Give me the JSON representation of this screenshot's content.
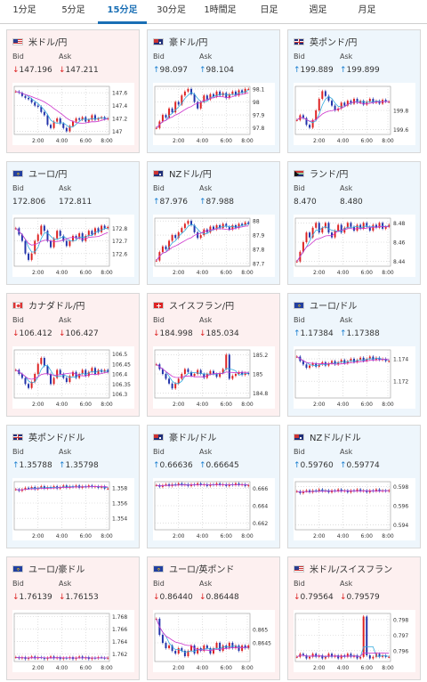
{
  "tabs": [
    {
      "label": "1分足",
      "active": false
    },
    {
      "label": "5分足",
      "active": false
    },
    {
      "label": "15分足",
      "active": true
    },
    {
      "label": "30分足",
      "active": false
    },
    {
      "label": "1時間足",
      "active": false
    },
    {
      "label": "日足",
      "active": false
    },
    {
      "label": "週足",
      "active": false
    },
    {
      "label": "月足",
      "active": false
    }
  ],
  "labels": {
    "bid": "Bid",
    "ask": "Ask"
  },
  "arrows": {
    "up": "↑",
    "down": "↓"
  },
  "colors": {
    "down_bg": "#fdf0f0",
    "up_bg": "#eef6fc",
    "down_arrow": "#dd2222",
    "up_arrow": "#1a7ed0",
    "candle_up": "#dd2222",
    "candle_down": "#2233aa",
    "ma_short": "#33aadd",
    "ma_long": "#cc33cc",
    "active_tab": "#1a6fb5"
  },
  "x_ticks": [
    "2:00",
    "4:00",
    "6:00",
    "8:00"
  ],
  "pairs": [
    {
      "name": "米ドル/円",
      "flag": "us",
      "dir": "down",
      "bid": "147.196",
      "ask": "147.211",
      "y_ticks": [
        "147.6",
        "147.4",
        "147.2",
        "147"
      ],
      "chart_data": {
        "type": "candlestick",
        "x_ticks": [
          "2:00",
          "4:00",
          "6:00",
          "8:00"
        ],
        "y_ticks": [
          147.6,
          147.4,
          147.2,
          147.0
        ],
        "y_range": [
          146.95,
          147.7
        ],
        "closes": [
          147.62,
          147.6,
          147.55,
          147.52,
          147.5,
          147.45,
          147.4,
          147.38,
          147.3,
          147.25,
          147.1,
          147.05,
          147.15,
          147.2,
          147.12,
          147.05,
          147.0,
          147.08,
          147.15,
          147.2,
          147.18,
          147.22,
          147.15,
          147.18,
          147.25,
          147.18,
          147.2,
          147.22,
          147.19,
          147.2
        ]
      }
    },
    {
      "name": "豪ドル/円",
      "flag": "au",
      "dir": "up",
      "bid": "98.097",
      "ask": "98.104",
      "y_ticks": [
        "98.1",
        "98",
        "97.9",
        "97.8"
      ],
      "chart_data": {
        "type": "candlestick",
        "x_ticks": [
          "2:00",
          "4:00",
          "6:00",
          "8:00"
        ],
        "y_ticks": [
          98.1,
          98.0,
          97.9,
          97.8
        ],
        "y_range": [
          97.75,
          98.12
        ],
        "closes": [
          97.8,
          97.85,
          97.9,
          97.88,
          97.95,
          97.92,
          98.0,
          97.98,
          98.05,
          98.08,
          98.1,
          98.06,
          98.0,
          97.95,
          98.0,
          98.05,
          98.02,
          98.06,
          98.04,
          98.08,
          98.05,
          98.07,
          98.03,
          98.06,
          98.08,
          98.05,
          98.09,
          98.07,
          98.1,
          98.1
        ]
      }
    },
    {
      "name": "英ポンド/円",
      "flag": "gb",
      "dir": "up",
      "bid": "199.889",
      "ask": "199.899",
      "y_ticks": [
        "199.8",
        "199.6"
      ],
      "chart_data": {
        "type": "candlestick",
        "x_ticks": [
          "2:00",
          "4:00",
          "6:00",
          "8:00"
        ],
        "y_ticks": [
          199.8,
          199.6
        ],
        "y_range": [
          199.55,
          200.05
        ],
        "closes": [
          199.7,
          199.75,
          199.72,
          199.65,
          199.62,
          199.7,
          199.8,
          199.92,
          200.0,
          199.95,
          199.9,
          199.85,
          199.8,
          199.82,
          199.88,
          199.85,
          199.9,
          199.87,
          199.92,
          199.88,
          199.9,
          199.86,
          199.89,
          199.92,
          199.88,
          199.9,
          199.87,
          199.91,
          199.89,
          199.89
        ]
      }
    },
    {
      "name": "ユーロ/円",
      "flag": "eu",
      "dir": "none",
      "bid": "172.806",
      "ask": "172.811",
      "y_ticks": [
        "172.8",
        "172.7",
        "172.6"
      ],
      "chart_data": {
        "type": "candlestick",
        "x_ticks": [
          "2:00",
          "4:00",
          "6:00",
          "8:00"
        ],
        "y_ticks": [
          172.8,
          172.7,
          172.6
        ],
        "y_range": [
          172.5,
          172.88
        ],
        "closes": [
          172.8,
          172.75,
          172.7,
          172.6,
          172.55,
          172.6,
          172.7,
          172.75,
          172.82,
          172.78,
          172.7,
          172.65,
          172.72,
          172.78,
          172.74,
          172.7,
          172.66,
          172.7,
          172.74,
          172.72,
          172.76,
          172.7,
          172.74,
          172.78,
          172.75,
          172.8,
          172.77,
          172.82,
          172.8,
          172.81
        ]
      }
    },
    {
      "name": "NZドル/円",
      "flag": "nz",
      "dir": "up",
      "bid": "87.976",
      "ask": "87.988",
      "y_ticks": [
        "88",
        "87.9",
        "87.8",
        "87.7"
      ],
      "chart_data": {
        "type": "candlestick",
        "x_ticks": [
          "2:00",
          "4:00",
          "6:00",
          "8:00"
        ],
        "y_ticks": [
          88.0,
          87.9,
          87.8,
          87.7
        ],
        "y_range": [
          87.68,
          88.02
        ],
        "closes": [
          87.72,
          87.78,
          87.82,
          87.8,
          87.86,
          87.9,
          87.88,
          87.92,
          87.95,
          87.98,
          88.0,
          87.97,
          87.92,
          87.88,
          87.9,
          87.94,
          87.92,
          87.96,
          87.94,
          87.97,
          87.95,
          87.98,
          87.96,
          87.94,
          87.97,
          87.95,
          87.98,
          87.97,
          87.99,
          87.98
        ]
      }
    },
    {
      "name": "ランド/円",
      "flag": "za",
      "dir": "none",
      "bid": "8.470",
      "ask": "8.480",
      "y_ticks": [
        "8.48",
        "8.46",
        "8.44"
      ],
      "chart_data": {
        "type": "candlestick",
        "x_ticks": [
          "2:00",
          "4:00",
          "6:00",
          "8:00"
        ],
        "y_ticks": [
          8.48,
          8.46,
          8.44
        ],
        "y_range": [
          8.435,
          8.485
        ],
        "closes": [
          8.44,
          8.45,
          8.46,
          8.47,
          8.465,
          8.475,
          8.48,
          8.47,
          8.475,
          8.48,
          8.47,
          8.465,
          8.472,
          8.478,
          8.47,
          8.475,
          8.48,
          8.476,
          8.472,
          8.478,
          8.474,
          8.48,
          8.476,
          8.472,
          8.478,
          8.475,
          8.48,
          8.474,
          8.476,
          8.478
        ]
      }
    },
    {
      "name": "カナダドル/円",
      "flag": "ca",
      "dir": "down",
      "bid": "106.412",
      "ask": "106.427",
      "y_ticks": [
        "106.5",
        "106.45",
        "106.4",
        "106.35",
        "106.3"
      ],
      "chart_data": {
        "type": "candlestick",
        "x_ticks": [
          "2:00",
          "4:00",
          "6:00",
          "8:00"
        ],
        "y_ticks": [
          106.5,
          106.45,
          106.4,
          106.35,
          106.3
        ],
        "y_range": [
          106.28,
          106.52
        ],
        "closes": [
          106.42,
          106.4,
          106.38,
          106.35,
          106.33,
          106.36,
          106.4,
          106.45,
          106.48,
          106.44,
          106.4,
          106.35,
          106.38,
          106.42,
          106.4,
          106.38,
          106.36,
          106.39,
          106.41,
          106.38,
          106.4,
          106.42,
          106.39,
          106.41,
          106.43,
          106.4,
          106.42,
          106.41,
          106.42,
          106.41
        ]
      }
    },
    {
      "name": "スイスフラン/円",
      "flag": "ch",
      "dir": "down",
      "bid": "184.998",
      "ask": "185.034",
      "y_ticks": [
        "185.2",
        "185",
        "184.8"
      ],
      "chart_data": {
        "type": "candlestick",
        "x_ticks": [
          "2:00",
          "4:00",
          "6:00",
          "8:00"
        ],
        "y_ticks": [
          185.2,
          185.0,
          184.8
        ],
        "y_range": [
          184.75,
          185.25
        ],
        "closes": [
          185.1,
          185.05,
          185.0,
          184.95,
          184.9,
          184.85,
          184.9,
          184.95,
          185.0,
          185.05,
          185.02,
          184.98,
          185.0,
          185.04,
          185.0,
          184.96,
          185.0,
          185.03,
          185.0,
          184.97,
          185.01,
          185.05,
          185.2,
          184.95,
          184.98,
          185.0,
          185.02,
          184.99,
          185.01,
          185.0
        ]
      }
    },
    {
      "name": "ユーロ/ドル",
      "flag": "eu",
      "dir": "up",
      "bid": "1.17384",
      "ask": "1.17388",
      "y_ticks": [
        "1.174",
        "1.172"
      ],
      "chart_data": {
        "type": "candlestick",
        "x_ticks": [
          "2:00",
          "4:00",
          "6:00",
          "8:00"
        ],
        "y_ticks": [
          1.174,
          1.172
        ],
        "y_range": [
          1.1705,
          1.1748
        ],
        "closes": [
          1.1742,
          1.1738,
          1.1735,
          1.1732,
          1.1734,
          1.1736,
          1.1733,
          1.1735,
          1.1737,
          1.1734,
          1.1736,
          1.1738,
          1.1735,
          1.1737,
          1.1739,
          1.1736,
          1.1738,
          1.174,
          1.1737,
          1.1739,
          1.1741,
          1.1738,
          1.174,
          1.1742,
          1.1739,
          1.1741,
          1.1739,
          1.174,
          1.1738,
          1.1738
        ]
      }
    },
    {
      "name": "英ポンド/ドル",
      "flag": "gb",
      "dir": "up",
      "bid": "1.35788",
      "ask": "1.35798",
      "y_ticks": [
        "1.358",
        "1.356",
        "1.354"
      ],
      "chart_data": {
        "type": "candlestick",
        "x_ticks": [
          "2:00",
          "4:00",
          "6:00",
          "8:00"
        ],
        "y_ticks": [
          1.358,
          1.356,
          1.354
        ],
        "y_range": [
          1.3525,
          1.3588
        ],
        "closes": [
          1.3578,
          1.3576,
          1.3578,
          1.358,
          1.3579,
          1.3581,
          1.3578,
          1.358,
          1.3582,
          1.3579,
          1.3581,
          1.358,
          1.3582,
          1.3579,
          1.3581,
          1.3583,
          1.358,
          1.3582,
          1.3581,
          1.3583,
          1.358,
          1.3582,
          1.3581,
          1.3583,
          1.3581,
          1.3582,
          1.358,
          1.3582,
          1.3579,
          1.3579
        ]
      }
    },
    {
      "name": "豪ドル/ドル",
      "flag": "au",
      "dir": "up",
      "bid": "0.66636",
      "ask": "0.66645",
      "y_ticks": [
        "0.666",
        "0.664",
        "0.662"
      ],
      "chart_data": {
        "type": "candlestick",
        "x_ticks": [
          "2:00",
          "4:00",
          "6:00",
          "8:00"
        ],
        "y_ticks": [
          0.666,
          0.664,
          0.662
        ],
        "y_range": [
          0.6612,
          0.6668
        ],
        "closes": [
          0.6664,
          0.6662,
          0.6664,
          0.6665,
          0.6663,
          0.6665,
          0.6664,
          0.6666,
          0.6664,
          0.6665,
          0.6663,
          0.6665,
          0.6664,
          0.6666,
          0.6664,
          0.6665,
          0.6663,
          0.6665,
          0.6664,
          0.6666,
          0.6664,
          0.6665,
          0.6663,
          0.6665,
          0.6664,
          0.6666,
          0.6664,
          0.6665,
          0.6663,
          0.6664
        ]
      }
    },
    {
      "name": "NZドル/ドル",
      "flag": "nz",
      "dir": "up",
      "bid": "0.59760",
      "ask": "0.59774",
      "y_ticks": [
        "0.598",
        "0.596",
        "0.594"
      ],
      "chart_data": {
        "type": "candlestick",
        "x_ticks": [
          "2:00",
          "4:00",
          "6:00",
          "8:00"
        ],
        "y_ticks": [
          0.598,
          0.596,
          0.594
        ],
        "y_range": [
          0.5935,
          0.5985
        ],
        "closes": [
          0.5975,
          0.5973,
          0.5975,
          0.5976,
          0.5974,
          0.5976,
          0.5975,
          0.5977,
          0.5975,
          0.5976,
          0.5974,
          0.5976,
          0.5975,
          0.5977,
          0.5975,
          0.5976,
          0.5974,
          0.5976,
          0.5975,
          0.5977,
          0.5975,
          0.5976,
          0.5974,
          0.5976,
          0.5975,
          0.5977,
          0.5975,
          0.5976,
          0.5975,
          0.5976
        ]
      }
    },
    {
      "name": "ユーロ/豪ドル",
      "flag": "eu",
      "dir": "down",
      "bid": "1.76139",
      "ask": "1.76153",
      "y_ticks": [
        "1.768",
        "1.766",
        "1.764",
        "1.762"
      ],
      "chart_data": {
        "type": "candlestick",
        "x_ticks": [
          "2:00",
          "4:00",
          "6:00",
          "8:00"
        ],
        "y_ticks": [
          1.768,
          1.766,
          1.764,
          1.762
        ],
        "y_range": [
          1.7608,
          1.7685
        ],
        "closes": [
          1.7615,
          1.7613,
          1.7615,
          1.7612,
          1.7614,
          1.7616,
          1.7613,
          1.7615,
          1.7614,
          1.7612,
          1.7614,
          1.7616,
          1.7613,
          1.7615,
          1.7612,
          1.7614,
          1.7613,
          1.7615,
          1.7612,
          1.7614,
          1.7616,
          1.7613,
          1.7615,
          1.7612,
          1.7614,
          1.7613,
          1.7615,
          1.7614,
          1.7613,
          1.7614
        ]
      }
    },
    {
      "name": "ユーロ/英ポンド",
      "flag": "eu",
      "dir": "down",
      "bid": "0.86440",
      "ask": "0.86448",
      "y_ticks": [
        "0.865",
        "0.8645"
      ],
      "chart_data": {
        "type": "candlestick",
        "x_ticks": [
          "2:00",
          "4:00",
          "6:00",
          "8:00"
        ],
        "y_ticks": [
          0.865,
          0.8645
        ],
        "y_range": [
          0.8638,
          0.8656
        ],
        "closes": [
          0.8654,
          0.8648,
          0.8645,
          0.8643,
          0.8644,
          0.8642,
          0.8641,
          0.8643,
          0.8642,
          0.864,
          0.8642,
          0.8644,
          0.8641,
          0.8643,
          0.8642,
          0.8644,
          0.8643,
          0.8641,
          0.8643,
          0.8645,
          0.8642,
          0.8644,
          0.8643,
          0.8645,
          0.8643,
          0.8644,
          0.8642,
          0.8644,
          0.8643,
          0.8644
        ]
      }
    },
    {
      "name": "米ドル/スイスフラン",
      "flag": "us",
      "dir": "down",
      "bid": "0.79564",
      "ask": "0.79579",
      "y_ticks": [
        "0.798",
        "0.797",
        "0.796"
      ],
      "chart_data": {
        "type": "candlestick",
        "x_ticks": [
          "2:00",
          "4:00",
          "6:00",
          "8:00"
        ],
        "y_ticks": [
          0.798,
          0.797,
          0.796
        ],
        "y_range": [
          0.7953,
          0.7984
        ],
        "closes": [
          0.7956,
          0.7958,
          0.7957,
          0.7955,
          0.7956,
          0.7958,
          0.7956,
          0.7957,
          0.7955,
          0.7956,
          0.7958,
          0.7956,
          0.7957,
          0.7955,
          0.7957,
          0.7956,
          0.7958,
          0.7956,
          0.7957,
          0.7955,
          0.7956,
          0.7982,
          0.7957,
          0.7955,
          0.7956,
          0.7958,
          0.7956,
          0.7957,
          0.7956,
          0.7956
        ]
      }
    }
  ]
}
